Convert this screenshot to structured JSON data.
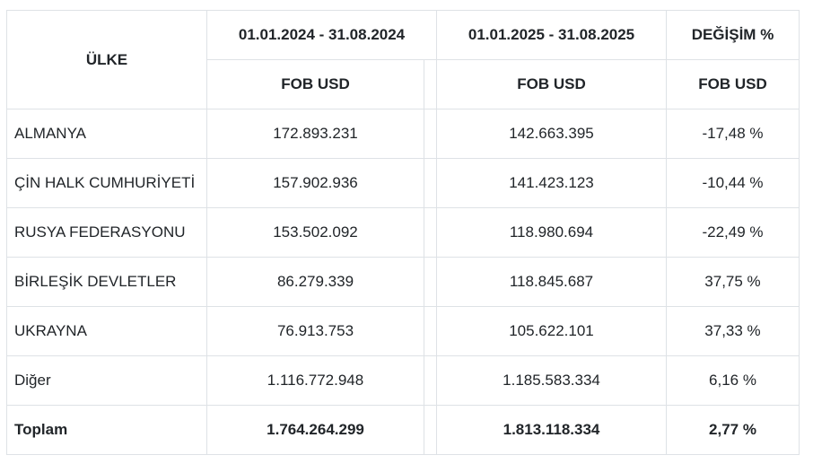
{
  "table": {
    "header": {
      "country": "ÜLKE",
      "period1": "01.01.2024 - 31.08.2024",
      "period2": "01.01.2025 - 31.08.2025",
      "change": "DEĞİŞİM %",
      "unit1": "FOB USD",
      "unit2": "FOB USD",
      "unit3": "FOB USD"
    },
    "rows": [
      {
        "country": "ALMANYA",
        "v2024": "172.893.231",
        "v2025": "142.663.395",
        "change": "-17,48 %"
      },
      {
        "country": "ÇİN HALK CUMHURİYETİ",
        "v2024": "157.902.936",
        "v2025": "141.423.123",
        "change": "-10,44 %"
      },
      {
        "country": "RUSYA FEDERASYONU",
        "v2024": "153.502.092",
        "v2025": "118.980.694",
        "change": "-22,49 %"
      },
      {
        "country": "BİRLEŞİK DEVLETLER",
        "v2024": "86.279.339",
        "v2025": "118.845.687",
        "change": "37,75 %"
      },
      {
        "country": "UKRAYNA",
        "v2024": "76.913.753",
        "v2025": "105.622.101",
        "change": "37,33 %"
      },
      {
        "country": "Diğer",
        "v2024": "1.116.772.948",
        "v2025": "1.185.583.334",
        "change": "6,16 %"
      }
    ],
    "total": {
      "country": "Toplam",
      "v2024": "1.764.264.299",
      "v2025": "1.813.118.334",
      "change": "2,77 %"
    }
  }
}
